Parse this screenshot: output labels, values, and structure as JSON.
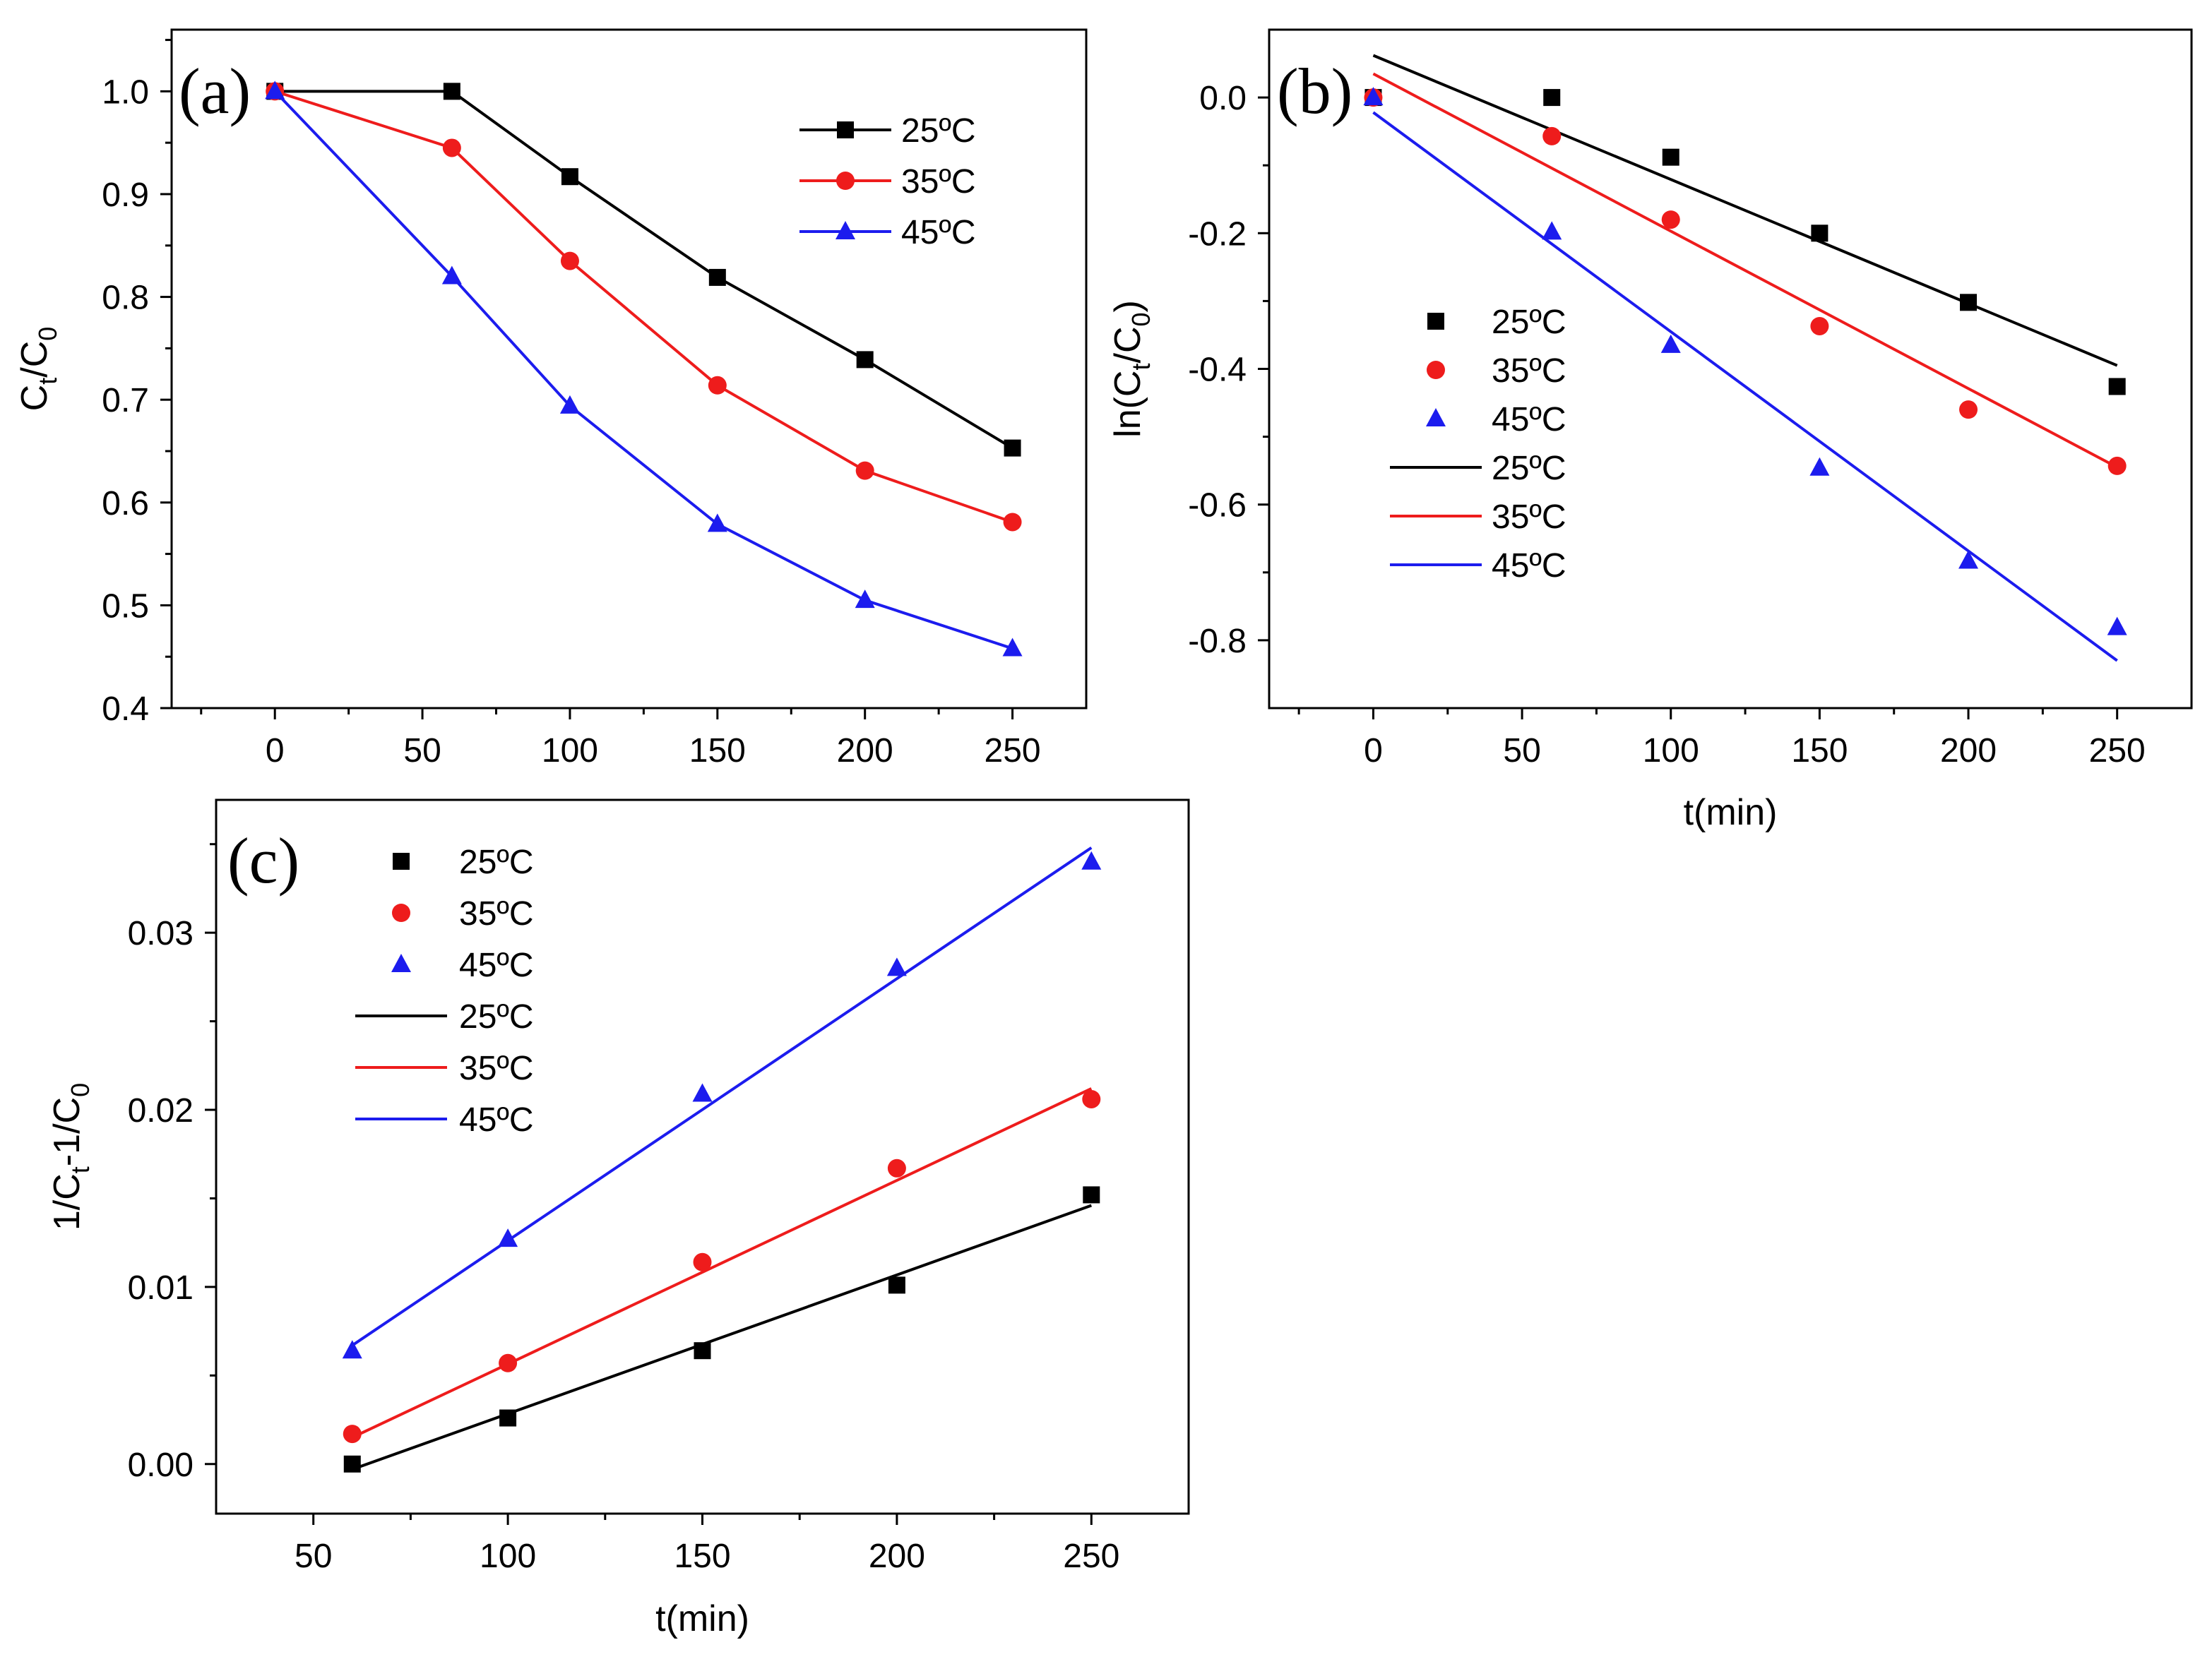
{
  "chart_data": [
    {
      "panel": "(a)",
      "type": "line",
      "title": "",
      "xlabel": "",
      "ylabel": {
        "main": "C",
        "sub1": "t",
        "slash": "/C",
        "sub2": "0"
      },
      "xlim": [
        -35,
        275
      ],
      "ylim": [
        0.4,
        1.06
      ],
      "xticks": [
        0,
        50,
        100,
        150,
        200,
        250
      ],
      "xtick_labels": [
        "0",
        "50",
        "100",
        "150",
        "200",
        "250"
      ],
      "yticks": [
        0.4,
        0.5,
        0.6,
        0.7,
        0.8,
        0.9,
        1.0
      ],
      "ytick_labels": [
        "0.4",
        "0.5",
        "0.6",
        "0.7",
        "0.8",
        "0.9",
        "1.0"
      ],
      "legend_position": "top-right",
      "x": [
        0,
        60,
        100,
        150,
        200,
        250
      ],
      "series": [
        {
          "name": "25ºC",
          "color": "#000000",
          "marker": "square",
          "values": [
            1.0,
            1.0,
            0.917,
            0.819,
            0.739,
            0.653
          ],
          "line": true
        },
        {
          "name": "35ºC",
          "color": "#ee1c1c",
          "marker": "circle",
          "values": [
            1.0,
            0.945,
            0.835,
            0.714,
            0.631,
            0.581
          ],
          "line": true
        },
        {
          "name": "45ºC",
          "color": "#1c1cee",
          "marker": "triangle",
          "values": [
            1.0,
            0.82,
            0.694,
            0.579,
            0.505,
            0.458
          ],
          "line": true
        }
      ]
    },
    {
      "panel": "(b)",
      "type": "scatter",
      "title": "",
      "xlabel": "t(min)",
      "ylabel": {
        "main": "ln(C",
        "sub1": "t",
        "slash": "/C",
        "sub2": "0",
        "close": ")"
      },
      "xlim": [
        -35,
        275
      ],
      "ylim": [
        -0.9,
        0.1
      ],
      "xticks": [
        0,
        50,
        100,
        150,
        200,
        250
      ],
      "xtick_labels": [
        "0",
        "50",
        "100",
        "150",
        "200",
        "250"
      ],
      "yticks": [
        -0.8,
        -0.6,
        -0.4,
        -0.2,
        0.0
      ],
      "ytick_labels": [
        "-0.8",
        "-0.6",
        "-0.4",
        "-0.2",
        "0.0"
      ],
      "legend_position": "left",
      "x": [
        0,
        60,
        100,
        150,
        200,
        250
      ],
      "series": [
        {
          "name": "25ºC",
          "color": "#000000",
          "marker": "square",
          "values": [
            0.0,
            0.0,
            -0.088,
            -0.2,
            -0.302,
            -0.426
          ]
        },
        {
          "name": "35ºC",
          "color": "#ee1c1c",
          "marker": "circle",
          "values": [
            0.0,
            -0.057,
            -0.18,
            -0.337,
            -0.46,
            -0.543
          ]
        },
        {
          "name": "45ºC",
          "color": "#1c1cee",
          "marker": "triangle",
          "values": [
            0.0,
            -0.198,
            -0.365,
            -0.546,
            -0.683,
            -0.781
          ]
        }
      ],
      "fits": [
        {
          "name": "25ºC",
          "color": "#000000",
          "x": [
            0,
            250
          ],
          "y": [
            0.062,
            -0.395
          ]
        },
        {
          "name": "35ºC",
          "color": "#ee1c1c",
          "x": [
            0,
            250
          ],
          "y": [
            0.035,
            -0.545
          ]
        },
        {
          "name": "45ºC",
          "color": "#1c1cee",
          "x": [
            0,
            250
          ],
          "y": [
            -0.022,
            -0.83
          ]
        }
      ]
    },
    {
      "panel": "(c)",
      "type": "scatter",
      "title": "",
      "xlabel": "t(min)",
      "ylabel": {
        "main": "1/C",
        "sub1": "t",
        "slash": "-1/C",
        "sub2": "0"
      },
      "xlim": [
        25,
        275
      ],
      "ylim": [
        -0.0028,
        0.0375
      ],
      "xticks": [
        50,
        100,
        150,
        200,
        250
      ],
      "xtick_labels": [
        "50",
        "100",
        "150",
        "200",
        "250"
      ],
      "yticks": [
        0.0,
        0.01,
        0.02,
        0.03
      ],
      "ytick_labels": [
        "0.00",
        "0.01",
        "0.02",
        "0.03"
      ],
      "legend_position": "top-left",
      "x": [
        60,
        100,
        150,
        200,
        250
      ],
      "series": [
        {
          "name": "25ºC",
          "color": "#000000",
          "marker": "square",
          "values": [
            0.0,
            0.0026,
            0.0064,
            0.0101,
            0.0152
          ]
        },
        {
          "name": "35ºC",
          "color": "#ee1c1c",
          "marker": "circle",
          "values": [
            0.0017,
            0.0057,
            0.0114,
            0.0167,
            0.0206
          ]
        },
        {
          "name": "45ºC",
          "color": "#1c1cee",
          "marker": "triangle",
          "values": [
            0.0064,
            0.0127,
            0.0209,
            0.028,
            0.034
          ]
        }
      ],
      "fits": [
        {
          "name": "25ºC",
          "color": "#000000",
          "x": [
            60,
            250
          ],
          "y": [
            -0.0003,
            0.0146
          ]
        },
        {
          "name": "35ºC",
          "color": "#ee1c1c",
          "x": [
            60,
            250
          ],
          "y": [
            0.0015,
            0.0212
          ]
        },
        {
          "name": "45ºC",
          "color": "#1c1cee",
          "x": [
            60,
            250
          ],
          "y": [
            0.0067,
            0.0348
          ]
        }
      ]
    }
  ]
}
